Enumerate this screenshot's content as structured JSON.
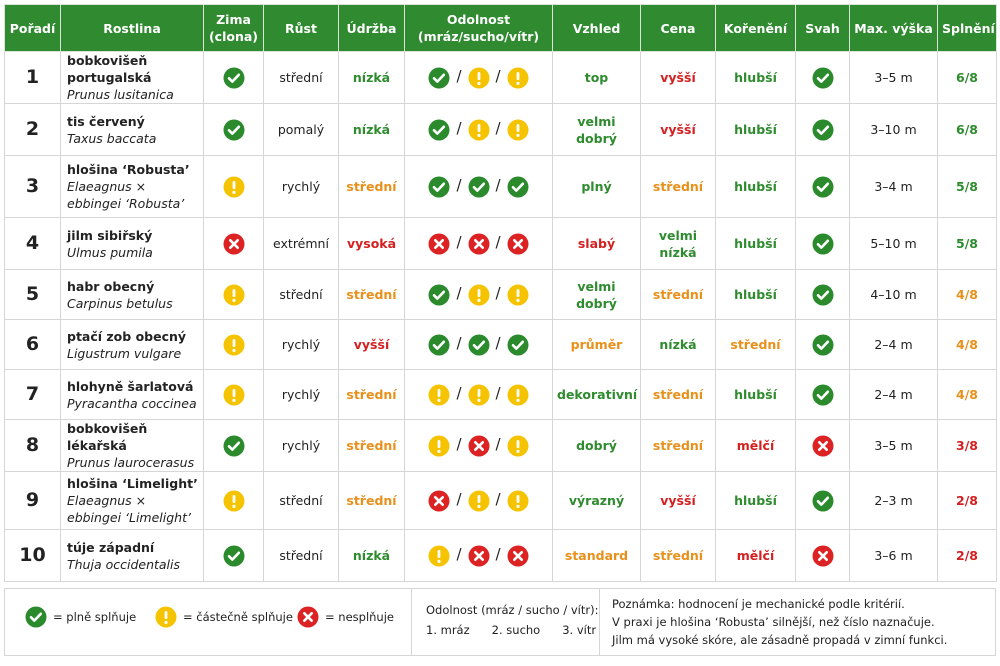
{
  "header": {
    "columns": [
      "Pořadí",
      "Rostlina",
      "Zima (clona)",
      "Růst",
      "Údržba",
      "Odolnost (mráz/sucho/vítr)",
      "Vzhled",
      "Cena",
      "Kořenění",
      "Svah",
      "Max. výška",
      "Splnění"
    ]
  },
  "separator": "/",
  "rows": [
    {
      "rank": "1",
      "name": "bobkovišeň portugalská",
      "latin": "Prunus lusitanica",
      "winter": "y",
      "growth": "střední",
      "maint": [
        "nízká",
        "g"
      ],
      "resist": [
        "y",
        "p",
        "p"
      ],
      "look": [
        "top",
        "g"
      ],
      "price": [
        "vyšší",
        "r"
      ],
      "roots": [
        "hlubší",
        "g"
      ],
      "slope": "y",
      "height": "3–5 m",
      "score": [
        "6/8",
        "g"
      ]
    },
    {
      "rank": "2",
      "name": "tis červený",
      "latin": "Taxus baccata",
      "winter": "y",
      "growth": "pomalý",
      "maint": [
        "nízká",
        "g"
      ],
      "resist": [
        "y",
        "p",
        "p"
      ],
      "look": [
        "velmi dobrý",
        "g"
      ],
      "price": [
        "vyšší",
        "r"
      ],
      "roots": [
        "hlubší",
        "g"
      ],
      "slope": "y",
      "height": "3–10 m",
      "score": [
        "6/8",
        "g"
      ]
    },
    {
      "rank": "3",
      "name": "hlošina ‘Robusta’",
      "latin": "Elaeagnus × ebbingei ‘Robusta’",
      "winter": "p",
      "growth": "rychlý",
      "maint": [
        "střední",
        "o"
      ],
      "resist": [
        "y",
        "y",
        "y"
      ],
      "look": [
        "plný",
        "g"
      ],
      "price": [
        "střední",
        "o"
      ],
      "roots": [
        "hlubší",
        "g"
      ],
      "slope": "y",
      "height": "3–4 m",
      "score": [
        "5/8",
        "g"
      ]
    },
    {
      "rank": "4",
      "name": "jilm sibiřský",
      "latin": "Ulmus pumila",
      "winter": "n",
      "growth": "extrémní",
      "maint": [
        "vysoká",
        "r"
      ],
      "resist": [
        "n",
        "n",
        "n"
      ],
      "look": [
        "slabý",
        "r"
      ],
      "price": [
        "velmi nízká",
        "g"
      ],
      "roots": [
        "hlubší",
        "g"
      ],
      "slope": "y",
      "height": "5–10 m",
      "score": [
        "5/8",
        "g"
      ]
    },
    {
      "rank": "5",
      "name": "habr obecný",
      "latin": "Carpinus betulus",
      "winter": "p",
      "growth": "střední",
      "maint": [
        "střední",
        "o"
      ],
      "resist": [
        "y",
        "p",
        "p"
      ],
      "look": [
        "velmi dobrý",
        "g"
      ],
      "price": [
        "střední",
        "o"
      ],
      "roots": [
        "hlubší",
        "g"
      ],
      "slope": "y",
      "height": "4–10 m",
      "score": [
        "4/8",
        "o"
      ]
    },
    {
      "rank": "6",
      "name": "ptačí zob obecný",
      "latin": "Ligustrum vulgare",
      "winter": "p",
      "growth": "rychlý",
      "maint": [
        "vyšší",
        "r"
      ],
      "resist": [
        "y",
        "y",
        "y"
      ],
      "look": [
        "průměr",
        "o"
      ],
      "price": [
        "nízká",
        "g"
      ],
      "roots": [
        "střední",
        "o"
      ],
      "slope": "y",
      "height": "2–4 m",
      "score": [
        "4/8",
        "o"
      ]
    },
    {
      "rank": "7",
      "name": "hlohyně šarlatová",
      "latin": "Pyracantha coccinea",
      "winter": "p",
      "growth": "rychlý",
      "maint": [
        "střední",
        "o"
      ],
      "resist": [
        "p",
        "p",
        "p"
      ],
      "look": [
        "dekorativní",
        "g"
      ],
      "price": [
        "střední",
        "o"
      ],
      "roots": [
        "hlubší",
        "g"
      ],
      "slope": "y",
      "height": "2–4 m",
      "score": [
        "4/8",
        "o"
      ]
    },
    {
      "rank": "8",
      "name": "bobkovišeň lékařská",
      "latin": "Prunus laurocerasus",
      "winter": "y",
      "growth": "rychlý",
      "maint": [
        "střední",
        "o"
      ],
      "resist": [
        "p",
        "n",
        "p"
      ],
      "look": [
        "dobrý",
        "g"
      ],
      "price": [
        "střední",
        "o"
      ],
      "roots": [
        "mělčí",
        "r"
      ],
      "slope": "n",
      "height": "3–5 m",
      "score": [
        "3/8",
        "r"
      ]
    },
    {
      "rank": "9",
      "name": "hlošina ‘Limelight’",
      "latin": "Elaeagnus × ebbingei ‘Limelight’",
      "winter": "p",
      "growth": "střední",
      "maint": [
        "střední",
        "o"
      ],
      "resist": [
        "n",
        "p",
        "p"
      ],
      "look": [
        "výrazný",
        "g"
      ],
      "price": [
        "vyšší",
        "r"
      ],
      "roots": [
        "hlubší",
        "g"
      ],
      "slope": "y",
      "height": "2–3 m",
      "score": [
        "2/8",
        "r"
      ]
    },
    {
      "rank": "10",
      "name": "túje západní",
      "latin": "Thuja occidentalis",
      "winter": "y",
      "growth": "střední",
      "maint": [
        "nízká",
        "g"
      ],
      "resist": [
        "p",
        "n",
        "n"
      ],
      "look": [
        "standard",
        "o"
      ],
      "price": [
        "střední",
        "o"
      ],
      "roots": [
        "mělčí",
        "r"
      ],
      "slope": "n",
      "height": "3–6 m",
      "score": [
        "2/8",
        "r"
      ]
    }
  ],
  "legend": {
    "items": [
      {
        "icon": "y",
        "label": "= plně splňuje"
      },
      {
        "icon": "p",
        "label": "= částečně splňuje"
      },
      {
        "icon": "n",
        "label": "= nesplňuje"
      }
    ],
    "resist_title": "Odolnost (mráz / sucho / vítr):",
    "resist_items": [
      "1. mráz",
      "2. sucho",
      "3. vítr"
    ]
  },
  "note": [
    "Poznámka: hodnocení je mechanické podle kritérií.",
    "V praxi je hlošina ‘Robusta’ silnější, než číslo naznačuje.",
    "Jilm má vysoké skóre, ale zásadně propadá v zimní funkci."
  ]
}
